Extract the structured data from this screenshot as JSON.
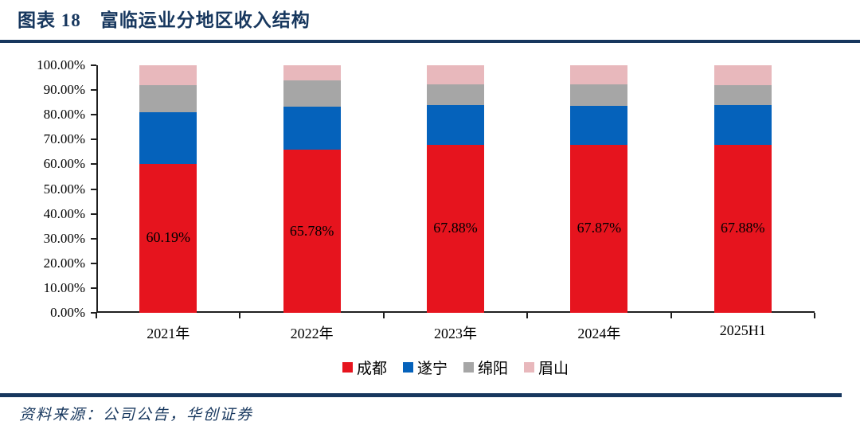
{
  "title": "图表 18　富临运业分地区收入结构",
  "source": "资料来源：公司公告，华创证券",
  "colors": {
    "accent_navy": "#17375E",
    "axis": "#1f1f1f",
    "chengdu_red": "#E6141E",
    "suining_blue": "#0562BB",
    "mianyang_gray": "#A6A6A6",
    "meishan_pink": "#E8B8BC"
  },
  "chart_data": {
    "type": "bar",
    "stacked": true,
    "unit": "percent",
    "title": "富临运业分地区收入结构",
    "categories": [
      "2021年",
      "2022年",
      "2023年",
      "2024年",
      "2025H1"
    ],
    "series": [
      {
        "name": "成都",
        "key": "chengdu",
        "color": "#E6141E",
        "values": [
          60.19,
          65.78,
          67.88,
          67.87,
          67.88
        ],
        "labels": [
          "60.19%",
          "65.78%",
          "67.88%",
          "67.87%",
          "67.88%"
        ]
      },
      {
        "name": "遂宁",
        "key": "suining",
        "color": "#0562BB",
        "values": [
          20.71,
          17.6,
          16.2,
          15.7,
          15.92
        ]
      },
      {
        "name": "绵阳",
        "key": "mianyang",
        "color": "#A6A6A6",
        "values": [
          11.0,
          10.4,
          8.1,
          8.6,
          8.1
        ]
      },
      {
        "name": "眉山",
        "key": "meishan",
        "color": "#E8B8BC",
        "values": [
          8.1,
          6.22,
          7.82,
          7.83,
          8.1
        ]
      }
    ],
    "yticks": [
      "100.00%",
      "90.00%",
      "80.00%",
      "70.00%",
      "60.00%",
      "50.00%",
      "40.00%",
      "30.00%",
      "20.00%",
      "10.00%",
      "0.00%"
    ],
    "ylim": [
      0,
      100
    ],
    "grid": false,
    "legend_position": "bottom"
  }
}
